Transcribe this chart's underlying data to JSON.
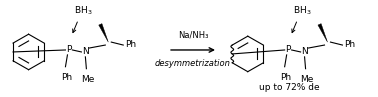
{
  "bg_color": "#ffffff",
  "arrow_reagent_line1": "Na/NH₃",
  "arrow_reagent_line2": "desymmetrization",
  "yield_text": "up to 72% de",
  "font_size_atom": 6.5,
  "font_size_reagent": 6.0,
  "font_size_yield": 6.5,
  "figsize": [
    3.78,
    0.97
  ],
  "dpi": 100
}
